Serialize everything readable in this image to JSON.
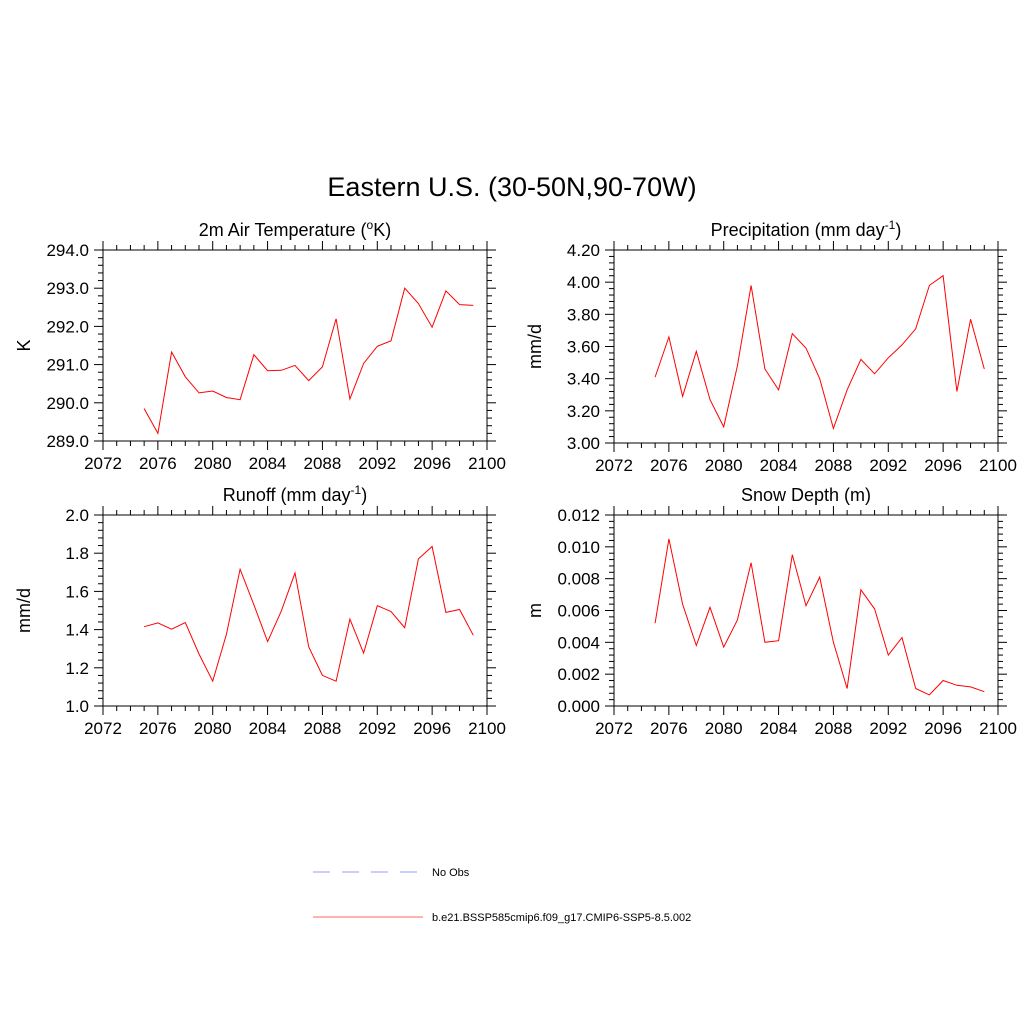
{
  "figure": {
    "title": "Eastern U.S. (30-50N,90-70W)"
  },
  "chart_data": [
    {
      "type": "line",
      "title": "2m Air Temperature (°K)",
      "title_parts": [
        "2m Air Temperature (",
        "o",
        "K)"
      ],
      "ylabel": "K",
      "xlim": [
        2072,
        2100
      ],
      "ylim": [
        289.0,
        294.0
      ],
      "x_ticks": [
        "2072",
        "2076",
        "2080",
        "2084",
        "2088",
        "2092",
        "2096",
        "2100"
      ],
      "y_ticks": [
        "289.0",
        "290.0",
        "291.0",
        "292.0",
        "293.0",
        "294.0"
      ],
      "series": [
        {
          "color": "#ff0000",
          "x": [
            2075,
            2076,
            2077,
            2078,
            2079,
            2080,
            2081,
            2082,
            2083,
            2084,
            2085,
            2086,
            2087,
            2088,
            2089,
            2090,
            2091,
            2092,
            2093,
            2094,
            2095,
            2096,
            2097,
            2098,
            2099
          ],
          "values": [
            289.85,
            289.2,
            291.33,
            290.68,
            290.26,
            290.31,
            290.14,
            290.08,
            291.26,
            290.84,
            290.85,
            290.98,
            290.58,
            290.94,
            292.2,
            290.1,
            291.03,
            291.48,
            291.62,
            293.0,
            292.6,
            291.98,
            292.93,
            292.57,
            292.55
          ]
        }
      ]
    },
    {
      "type": "line",
      "title": "Precipitation (mm day-1)",
      "title_parts": [
        "Precipitation (mm day",
        "-1",
        ")"
      ],
      "ylabel": "mm/d",
      "xlim": [
        2072,
        2100
      ],
      "ylim": [
        3.0,
        4.2
      ],
      "x_ticks": [
        "2072",
        "2076",
        "2080",
        "2084",
        "2088",
        "2092",
        "2096",
        "2100"
      ],
      "y_ticks": [
        "3.00",
        "3.20",
        "3.40",
        "3.60",
        "3.80",
        "4.00",
        "4.20"
      ],
      "series": [
        {
          "color": "#ff0000",
          "x": [
            2075,
            2076,
            2077,
            2078,
            2079,
            2080,
            2081,
            2082,
            2083,
            2084,
            2085,
            2086,
            2087,
            2088,
            2089,
            2090,
            2091,
            2092,
            2093,
            2094,
            2095,
            2096,
            2097,
            2098,
            2099
          ],
          "values": [
            3.41,
            3.66,
            3.29,
            3.57,
            3.27,
            3.1,
            3.48,
            3.98,
            3.46,
            3.33,
            3.68,
            3.59,
            3.4,
            3.09,
            3.33,
            3.52,
            3.43,
            3.53,
            3.61,
            3.71,
            3.98,
            4.04,
            3.32,
            3.77,
            3.46
          ]
        }
      ]
    },
    {
      "type": "line",
      "title": "Runoff (mm day-1)",
      "title_parts": [
        "Runoff (mm day",
        "-1",
        ")"
      ],
      "ylabel": "mm/d",
      "xlim": [
        2072,
        2100
      ],
      "ylim": [
        1.0,
        2.0
      ],
      "x_ticks": [
        "2072",
        "2076",
        "2080",
        "2084",
        "2088",
        "2092",
        "2096",
        "2100"
      ],
      "y_ticks": [
        "1.0",
        "1.2",
        "1.4",
        "1.6",
        "1.8",
        "2.0"
      ],
      "series": [
        {
          "color": "#ff0000",
          "x": [
            2075,
            2076,
            2077,
            2078,
            2079,
            2080,
            2081,
            2082,
            2083,
            2084,
            2085,
            2086,
            2087,
            2088,
            2089,
            2090,
            2091,
            2092,
            2093,
            2094,
            2095,
            2096,
            2097,
            2098,
            2099
          ],
          "values": [
            1.415,
            1.435,
            1.402,
            1.437,
            1.272,
            1.13,
            1.375,
            1.716,
            1.53,
            1.337,
            1.497,
            1.697,
            1.31,
            1.16,
            1.13,
            1.455,
            1.277,
            1.525,
            1.495,
            1.41,
            1.77,
            1.835,
            1.49,
            1.505,
            1.37
          ]
        }
      ]
    },
    {
      "type": "line",
      "title": "Snow Depth (m)",
      "title_parts": [
        "Snow Depth (m)",
        "",
        ""
      ],
      "ylabel": "m",
      "xlim": [
        2072,
        2100
      ],
      "ylim": [
        0.0,
        0.012
      ],
      "x_ticks": [
        "2072",
        "2076",
        "2080",
        "2084",
        "2088",
        "2092",
        "2096",
        "2100"
      ],
      "y_ticks": [
        "0.000",
        "0.002",
        "0.004",
        "0.006",
        "0.008",
        "0.010",
        "0.012"
      ],
      "series": [
        {
          "color": "#ff0000",
          "x": [
            2075,
            2076,
            2077,
            2078,
            2079,
            2080,
            2081,
            2082,
            2083,
            2084,
            2085,
            2086,
            2087,
            2088,
            2089,
            2090,
            2091,
            2092,
            2093,
            2094,
            2095,
            2096,
            2097,
            2098,
            2099
          ],
          "values": [
            0.0052,
            0.0105,
            0.0064,
            0.0038,
            0.0062,
            0.0037,
            0.0054,
            0.009,
            0.004,
            0.0041,
            0.0095,
            0.0063,
            0.0081,
            0.004,
            0.0011,
            0.0073,
            0.0061,
            0.0032,
            0.0043,
            0.0011,
            0.0007,
            0.0016,
            0.0013,
            0.0012,
            0.0009
          ]
        }
      ]
    }
  ],
  "legend": {
    "items": [
      {
        "label": "No Obs",
        "color": "#9999ff",
        "style": "dashed"
      },
      {
        "label": "b.e21.BSSP585cmip6.f09_g17.CMIP6-SSP5-8.5.002",
        "color": "#ff6666",
        "style": "solid"
      }
    ]
  }
}
